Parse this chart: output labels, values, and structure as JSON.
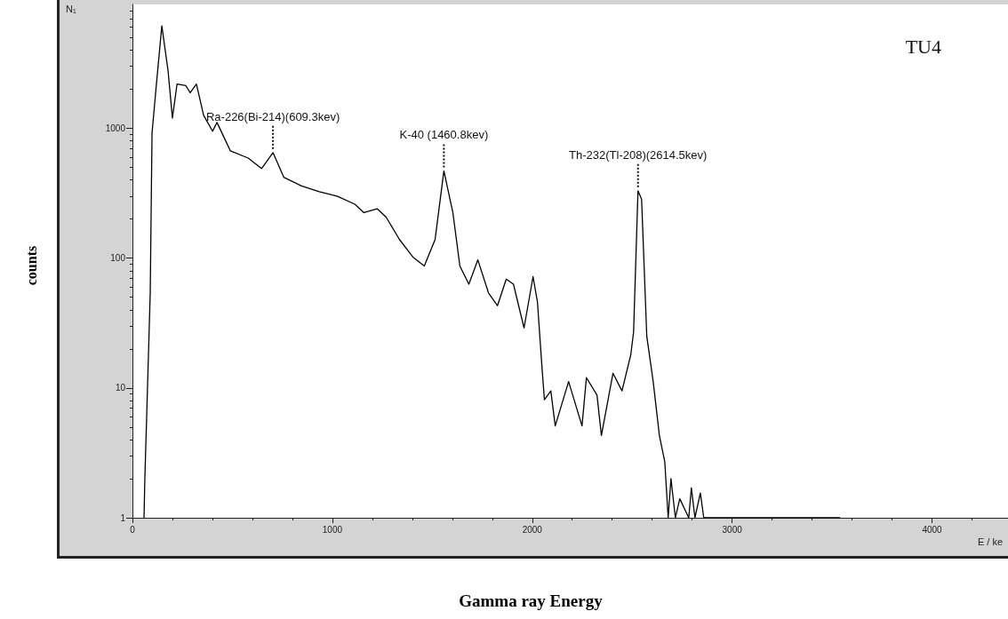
{
  "chart_data": {
    "type": "line",
    "title": "TU4",
    "xlabel": "Gamma ray Energy",
    "ylabel": "counts",
    "x": [
      58,
      62,
      71,
      89,
      98,
      116,
      147,
      178,
      200,
      223,
      267,
      289,
      320,
      356,
      401,
      423,
      490,
      579,
      646,
      703,
      757,
      846,
      935,
      1024,
      1113,
      1158,
      1224,
      1269,
      1336,
      1403,
      1460,
      1514,
      1558,
      1603,
      1638,
      1683,
      1728,
      1781,
      1826,
      1870,
      1906,
      1959,
      2004,
      2026,
      2048,
      2061,
      2093,
      2115,
      2182,
      2249,
      2271,
      2324,
      2346,
      2404,
      2449,
      2493,
      2507,
      2529,
      2547,
      2573,
      2605,
      2636,
      2663,
      2680,
      2694,
      2716,
      2738,
      2783,
      2796,
      2814,
      2841,
      2858,
      3540
    ],
    "series": [
      {
        "color": "#000000",
        "values": [
          1,
          2,
          5.9,
          54,
          920,
          1880,
          6150,
          2790,
          1200,
          2190,
          2130,
          1880,
          2190,
          1260,
          950,
          1110,
          670,
          590,
          490,
          650,
          420,
          360,
          325,
          300,
          260,
          224,
          240,
          207,
          139,
          102,
          87,
          139,
          470,
          224,
          87,
          63,
          97,
          54,
          43,
          69,
          63,
          29,
          72,
          46,
          15,
          8.1,
          9.5,
          5.1,
          11.2,
          5.1,
          12,
          8.8,
          4.3,
          13,
          9.5,
          18,
          27,
          330,
          285,
          25,
          11.2,
          4.3,
          2.7,
          1,
          2,
          1,
          1.4,
          1,
          1.7,
          1,
          1.55,
          1,
          1
        ]
      }
    ],
    "log": "y",
    "xlim": [
      0,
      4380
    ],
    "ylim": [
      1,
      9000
    ],
    "xticks": [
      0,
      1000,
      2000,
      3000,
      4000
    ],
    "yticks": [
      1,
      10,
      100,
      1000
    ],
    "grid": false,
    "marker": "none",
    "line_style": "solid",
    "annotations": [
      {
        "text": "Ra-226(Bi-214)(609.3kev)",
        "x": 703,
        "y": 650
      },
      {
        "text": "K-40 (1460.8kev)",
        "x": 1558,
        "y": 470
      },
      {
        "text": "Th-232(Tl-208)(2614.5kev)",
        "x": 2529,
        "y": 330
      },
      "N₁",
      "E / ke"
    ]
  }
}
